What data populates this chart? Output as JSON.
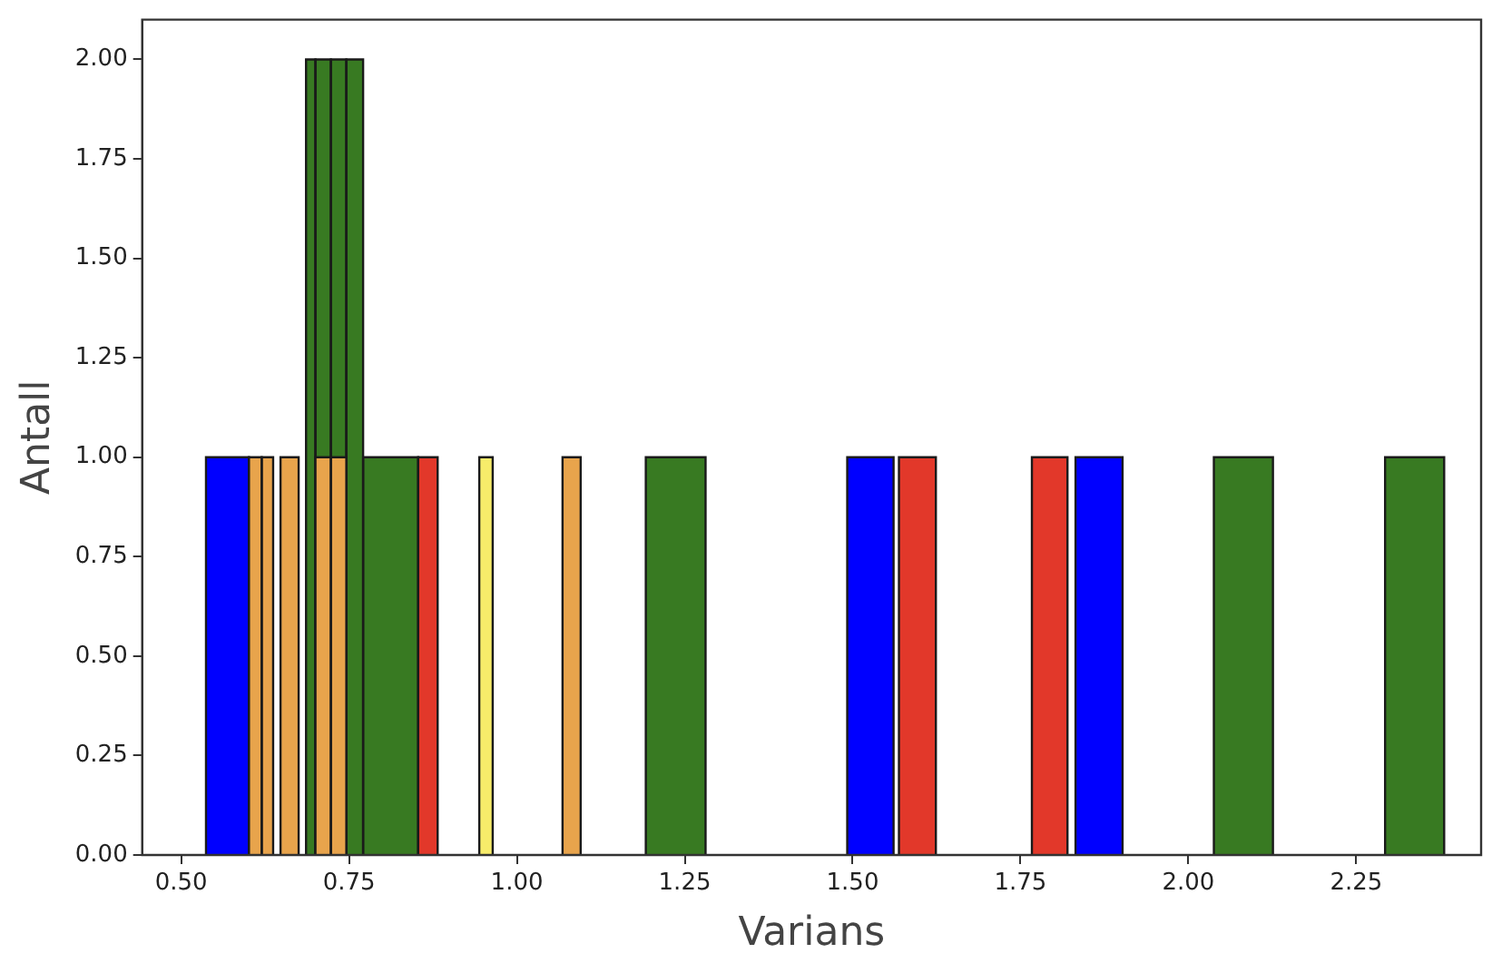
{
  "chart_data": {
    "type": "histogram",
    "xlabel": "Varians",
    "ylabel": "Antall",
    "xlim": [
      0.442,
      2.436
    ],
    "xticks": [
      {
        "value": 0.5,
        "label": "0.50"
      },
      {
        "value": 0.75,
        "label": "0.75"
      },
      {
        "value": 1,
        "label": "1.00"
      },
      {
        "value": 1.25,
        "label": "1.25"
      },
      {
        "value": 1.5,
        "label": "1.50"
      },
      {
        "value": 1.75,
        "label": "1.75"
      },
      {
        "value": 2,
        "label": "2.00"
      },
      {
        "value": 2.25,
        "label": "2.25"
      }
    ],
    "ylim": [
      0,
      2.1
    ],
    "yticks": [
      {
        "value": 0,
        "label": "0.00"
      },
      {
        "value": 0.25,
        "label": "0.25"
      },
      {
        "value": 0.5,
        "label": "0.50"
      },
      {
        "value": 0.75,
        "label": "0.75"
      },
      {
        "value": 1,
        "label": "1.00"
      },
      {
        "value": 1.25,
        "label": "1.25"
      },
      {
        "value": 1.5,
        "label": "1.50"
      },
      {
        "value": 1.75,
        "label": "1.75"
      },
      {
        "value": 2,
        "label": "2.00"
      }
    ],
    "grid": false,
    "legend": false,
    "bins": [
      0.537,
      0.601,
      0.62,
      0.637,
      0.648,
      0.675,
      0.686,
      0.7,
      0.723,
      0.746,
      0.771,
      0.853,
      0.882,
      0.944,
      0.964,
      1.068,
      1.095,
      1.192,
      1.281,
      1.492,
      1.561,
      1.569,
      1.624,
      1.767,
      1.82,
      1.832,
      1.902,
      2.038,
      2.126,
      2.293,
      2.381
    ],
    "series": [
      {
        "color": "#0000ff",
        "values": [
          1,
          0,
          0,
          0,
          0,
          0,
          0,
          0,
          0,
          0,
          0,
          0,
          0,
          0,
          0,
          0,
          0,
          0,
          0,
          1,
          0,
          0,
          0,
          0,
          0,
          1,
          0,
          0,
          0,
          0
        ]
      },
      {
        "color": "#387a22",
        "values": [
          0,
          0,
          0,
          0,
          0,
          0,
          2,
          2,
          2,
          2,
          1,
          0,
          0,
          0,
          0,
          0,
          0,
          1,
          0,
          0,
          0,
          0,
          0,
          0,
          0,
          0,
          0,
          1,
          0,
          1
        ]
      },
      {
        "color": "#e8a44c",
        "values": [
          0,
          1,
          1,
          0,
          1,
          0,
          0,
          1,
          1,
          0,
          0,
          0,
          0,
          0,
          0,
          1,
          0,
          0,
          0,
          0,
          0,
          0,
          0,
          0,
          0,
          0,
          0,
          0,
          0,
          0
        ]
      },
      {
        "color": "#e2382a",
        "values": [
          0,
          0,
          0,
          0,
          0,
          0,
          0,
          0,
          0,
          0,
          0,
          1,
          0,
          0,
          0,
          0,
          0,
          0,
          0,
          0,
          0,
          1,
          0,
          1,
          0,
          0,
          0,
          0,
          0,
          0
        ]
      },
      {
        "color": "#f7ec6a",
        "values": [
          0,
          0,
          0,
          0,
          0,
          0,
          0,
          0,
          0,
          0,
          0,
          0,
          0,
          1,
          0,
          0,
          0,
          0,
          0,
          0,
          0,
          0,
          0,
          0,
          0,
          0,
          0,
          0,
          0,
          0
        ]
      }
    ]
  }
}
